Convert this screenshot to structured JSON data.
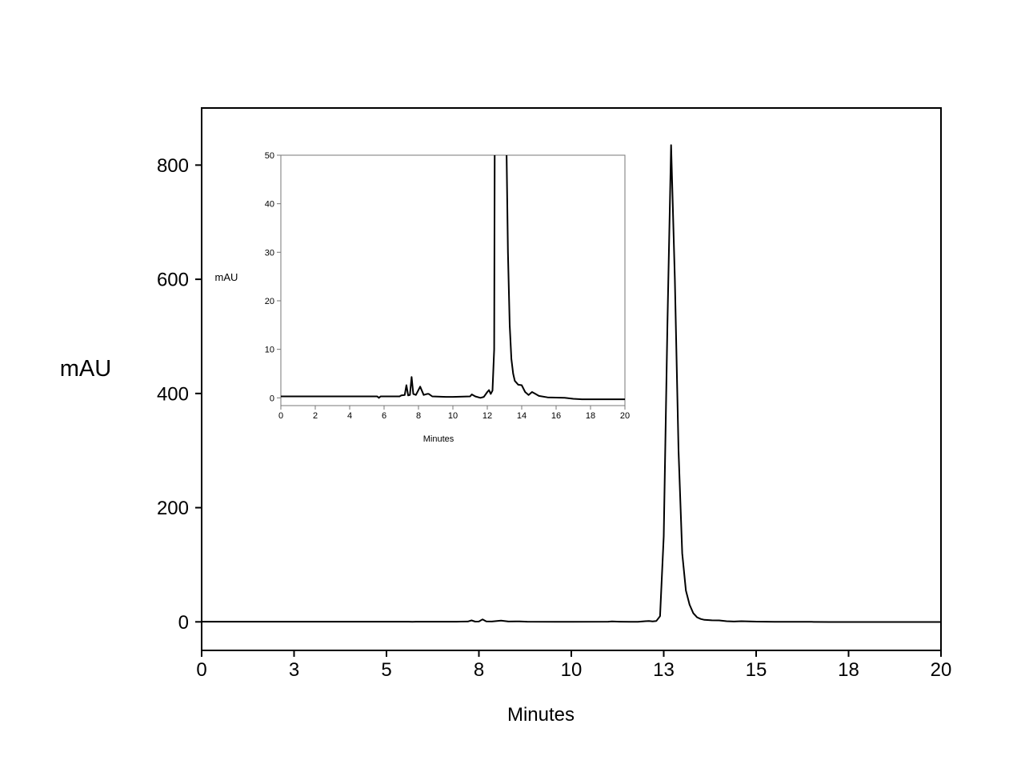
{
  "chart_data": [
    {
      "id": "main",
      "type": "line",
      "title": "",
      "xlabel": "Minutes",
      "ylabel": "mAU",
      "xlim": [
        0,
        20
      ],
      "ylim": [
        -50,
        900
      ],
      "xticks": [
        0,
        2.5,
        5,
        7.5,
        10,
        12.5,
        15,
        17.5,
        20
      ],
      "xtick_labels": [
        "0",
        "3",
        "5",
        "8",
        "10",
        "13",
        "15",
        "18",
        "20"
      ],
      "yticks": [
        0,
        200,
        400,
        600,
        800
      ],
      "ytick_labels": [
        "0",
        "200",
        "400",
        "600",
        "800"
      ],
      "grid": false,
      "color": "#000000"
    },
    {
      "id": "inset",
      "type": "line",
      "title": "",
      "xlabel": "Minutes",
      "ylabel": "mAU",
      "xlim": [
        0,
        20
      ],
      "ylim": [
        -1.6,
        50
      ],
      "xticks": [
        0,
        2,
        4,
        6,
        8,
        10,
        12,
        14,
        16,
        18,
        20
      ],
      "xtick_labels": [
        "0",
        "2",
        "4",
        "6",
        "8",
        "10",
        "12",
        "14",
        "16",
        "18",
        "20"
      ],
      "yticks": [
        0,
        10,
        20,
        30,
        40,
        50
      ],
      "ytick_labels": [
        "0",
        "10",
        "20",
        "30",
        "40",
        "50"
      ],
      "grid": false,
      "color": "#000000"
    }
  ],
  "series": {
    "x": [
      0,
      5.6,
      5.7,
      5.8,
      6.9,
      7.0,
      7.2,
      7.3,
      7.4,
      7.5,
      7.6,
      7.7,
      7.85,
      8.1,
      8.3,
      8.5,
      8.6,
      8.8,
      9.6,
      10,
      11,
      11.1,
      11.3,
      11.6,
      11.8,
      12.0,
      12.1,
      12.2,
      12.3,
      12.4,
      12.5,
      12.6,
      12.7,
      12.8,
      12.9,
      13.0,
      13.1,
      13.2,
      13.3,
      13.4,
      13.5,
      13.6,
      13.8,
      14.0,
      14.2,
      14.4,
      14.6,
      14.8,
      15.0,
      15.5,
      16.5,
      17,
      17.5,
      20
    ],
    "y": [
      0.3,
      0.3,
      0,
      0.3,
      0.3,
      0.5,
      0.6,
      2.6,
      0.5,
      0.6,
      4.3,
      0.8,
      0.6,
      2.3,
      0.6,
      0.8,
      0.8,
      0.3,
      0.2,
      0.2,
      0.3,
      0.7,
      0.3,
      0,
      0.2,
      1.2,
      1.6,
      0.8,
      1.5,
      10,
      150,
      520,
      835,
      600,
      300,
      120,
      55,
      30,
      15,
      8,
      5,
      3.5,
      2.7,
      2.6,
      1.2,
      0.6,
      1.2,
      0.8,
      0.4,
      0.1,
      0,
      -0.2,
      -0.3,
      -0.3
    ]
  }
}
